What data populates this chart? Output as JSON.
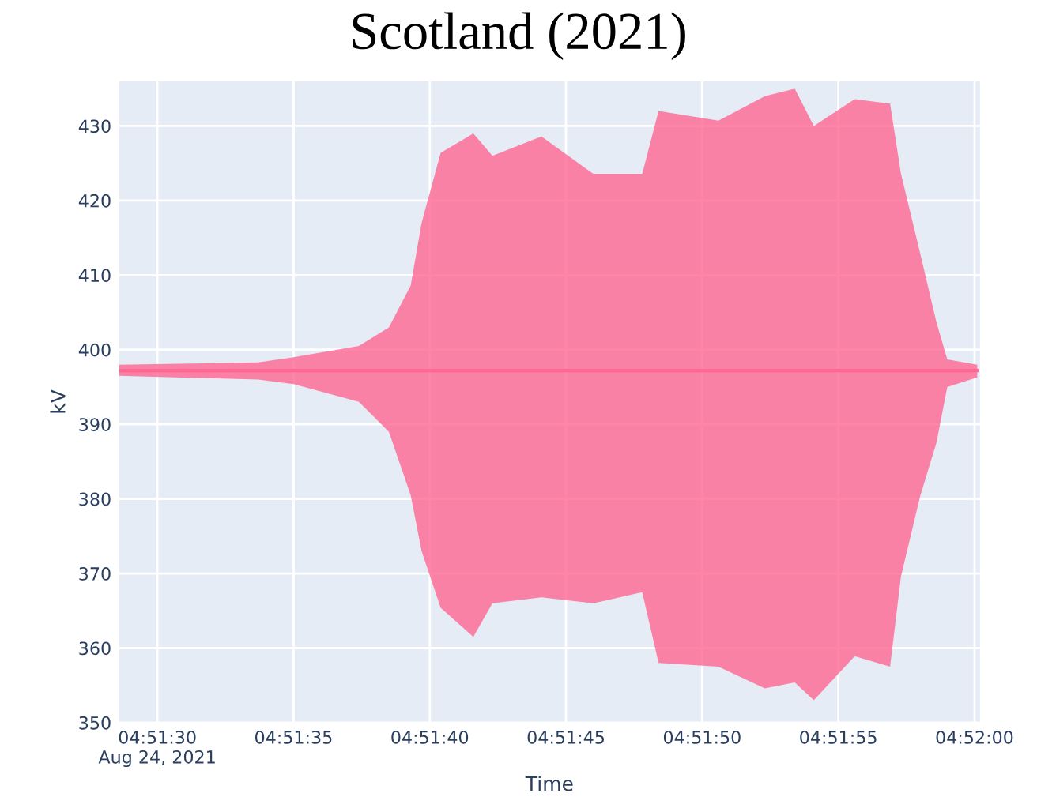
{
  "chart_data": {
    "type": "line",
    "title": "Scotland (2021)",
    "xlabel": "Time",
    "ylabel": "kV",
    "x": [
      "2021-08-24T04:51:28.6",
      "2021-08-24T04:51:33.7",
      "2021-08-24T04:51:35.0",
      "2021-08-24T04:51:37.4",
      "2021-08-24T04:51:38.5",
      "2021-08-24T04:51:39.3",
      "2021-08-24T04:51:39.7",
      "2021-08-24T04:51:40.4",
      "2021-08-24T04:51:41.6",
      "2021-08-24T04:51:42.3",
      "2021-08-24T04:51:44.1",
      "2021-08-24T04:51:46.0",
      "2021-08-24T04:51:47.8",
      "2021-08-24T04:51:48.4",
      "2021-08-24T04:51:50.6",
      "2021-08-24T04:51:52.3",
      "2021-08-24T04:51:53.4",
      "2021-08-24T04:51:54.1",
      "2021-08-24T04:51:55.6",
      "2021-08-24T04:51:56.9",
      "2021-08-24T04:51:57.3",
      "2021-08-24T04:51:58.0",
      "2021-08-24T04:51:58.6",
      "2021-08-24T04:51:59.0",
      "2021-08-24T04:52:00.1"
    ],
    "series": [
      {
        "color": "#ff6692",
        "values": [
          397.2,
          397.2,
          397.2,
          397.2,
          397.2,
          397.2,
          397.2,
          397.2,
          397.2,
          397.2,
          397.2,
          397.2,
          397.2,
          397.2,
          397.2,
          397.2,
          397.2,
          397.2,
          397.2,
          397.2,
          397.2,
          397.2,
          397.2,
          397.2,
          397.2
        ],
        "upper": [
          398,
          398.3,
          399,
          400.5,
          403,
          408.6,
          417,
          426.4,
          429,
          426,
          428.6,
          423.6,
          423.6,
          432,
          430.7,
          434,
          435,
          430,
          433.6,
          433,
          423.6,
          413,
          403.7,
          398.7,
          398
        ],
        "lower": [
          396.5,
          396,
          395.4,
          393,
          389,
          380.5,
          373,
          365.4,
          361.5,
          366,
          366.8,
          366,
          367.5,
          358,
          357.5,
          354.6,
          355.4,
          353,
          358.9,
          357.5,
          369.6,
          380.3,
          387.5,
          395,
          396.3
        ]
      }
    ],
    "xlim": [
      "2021-08-24T04:51:28.6",
      "2021-08-24T04:52:00.2"
    ],
    "xticks": [
      {
        "value": "2021-08-24T04:51:30",
        "label": "04:51:30\nAug 24, 2021"
      },
      {
        "value": "2021-08-24T04:51:35",
        "label": "04:51:35"
      },
      {
        "value": "2021-08-24T04:51:40",
        "label": "04:51:40"
      },
      {
        "value": "2021-08-24T04:51:45",
        "label": "04:51:45"
      },
      {
        "value": "2021-08-24T04:51:50",
        "label": "04:51:50"
      },
      {
        "value": "2021-08-24T04:51:55",
        "label": "04:51:55"
      },
      {
        "value": "2021-08-24T04:52:00",
        "label": "04:52:00"
      }
    ],
    "ylim": [
      350,
      436
    ],
    "yticks": [
      350,
      360,
      370,
      380,
      390,
      400,
      410,
      420,
      430
    ],
    "grid": true,
    "legend": false
  }
}
